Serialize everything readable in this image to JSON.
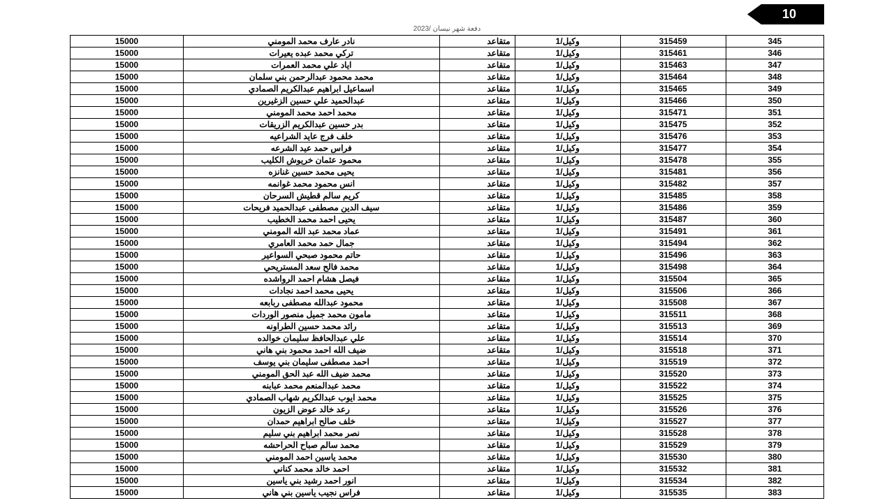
{
  "page_number": "10",
  "header": "دفعة شهر نيسان /2023",
  "table": {
    "columns": [
      "amount",
      "name",
      "status",
      "rank",
      "idnum",
      "rownum"
    ],
    "rows": [
      [
        "15000",
        "نادر عارف محمد المومني",
        "متقاعد",
        "وكيل/1",
        "315459",
        "345"
      ],
      [
        "15000",
        "تركي محمد عبده يعيرات",
        "متقاعد",
        "وكيل/1",
        "315461",
        "346"
      ],
      [
        "15000",
        "اياد علي محمد العمرات",
        "متقاعد",
        "وكيل/1",
        "315463",
        "347"
      ],
      [
        "15000",
        "محمد محمود عبدالرحمن بني سلمان",
        "متقاعد",
        "وكيل/1",
        "315464",
        "348"
      ],
      [
        "15000",
        "اسماعيل ابراهيم عبدالكريم الصمادي",
        "متقاعد",
        "وكيل/1",
        "315465",
        "349"
      ],
      [
        "15000",
        "عبدالحميد علي حسين الزغيرين",
        "متقاعد",
        "وكيل/1",
        "315466",
        "350"
      ],
      [
        "15000",
        "محمد احمد محمد المومني",
        "متقاعد",
        "وكيل/1",
        "315471",
        "351"
      ],
      [
        "15000",
        "بدر حسين عبدالكريم الزريقات",
        "متقاعد",
        "وكيل/1",
        "315475",
        "352"
      ],
      [
        "15000",
        "خلف فرج عايد الشراعيه",
        "متقاعد",
        "وكيل/1",
        "315476",
        "353"
      ],
      [
        "15000",
        "فراس حمد عيد الشرعه",
        "متقاعد",
        "وكيل/1",
        "315477",
        "354"
      ],
      [
        "15000",
        "محمود عثمان خريوش الكليب",
        "متقاعد",
        "وكيل/1",
        "315478",
        "355"
      ],
      [
        "15000",
        "يحيى محمد حسين غنانزه",
        "متقاعد",
        "وكيل/1",
        "315481",
        "356"
      ],
      [
        "15000",
        "انس محمود محمد غوانمه",
        "متقاعد",
        "وكيل/1",
        "315482",
        "357"
      ],
      [
        "15000",
        "كريم سالم قطيش السرحان",
        "متقاعد",
        "وكيل/1",
        "315485",
        "358"
      ],
      [
        "15000",
        "سيف الدين مصطفى عبدالحميد فريحات",
        "متقاعد",
        "وكيل/1",
        "315486",
        "359"
      ],
      [
        "15000",
        "يحيى احمد محمد الخطيب",
        "متقاعد",
        "وكيل/1",
        "315487",
        "360"
      ],
      [
        "15000",
        "عماد محمد عبد الله المومني",
        "متقاعد",
        "وكيل/1",
        "315491",
        "361"
      ],
      [
        "15000",
        "جمال حمد محمد العامري",
        "متقاعد",
        "وكيل/1",
        "315494",
        "362"
      ],
      [
        "15000",
        "حاتم محمود صبحي السواعير",
        "متقاعد",
        "وكيل/1",
        "315496",
        "363"
      ],
      [
        "15000",
        "محمد فالح سعد المستريحي",
        "متقاعد",
        "وكيل/1",
        "315498",
        "364"
      ],
      [
        "15000",
        "فيصل هشام احمد الرواشده",
        "متقاعد",
        "وكيل/1",
        "315504",
        "365"
      ],
      [
        "15000",
        "يحيى محمد احمد نجادات",
        "متقاعد",
        "وكيل/1",
        "315506",
        "366"
      ],
      [
        "15000",
        "محمود عبدالله مصطفى ربابعه",
        "متقاعد",
        "وكيل/1",
        "315508",
        "367"
      ],
      [
        "15000",
        "مامون محمد جميل منصور الوردات",
        "متقاعد",
        "وكيل/1",
        "315511",
        "368"
      ],
      [
        "15000",
        "رائد محمد حسين الطراونه",
        "متقاعد",
        "وكيل/1",
        "315513",
        "369"
      ],
      [
        "15000",
        "علي عبدالحافظ سليمان خوالده",
        "متقاعد",
        "وكيل/1",
        "315514",
        "370"
      ],
      [
        "15000",
        "ضيف الله احمد محمود بني هاني",
        "متقاعد",
        "وكيل/1",
        "315518",
        "371"
      ],
      [
        "15000",
        "احمد مصطفى سليمان بني يوسف",
        "متقاعد",
        "وكيل/1",
        "315519",
        "372"
      ],
      [
        "15000",
        "محمد ضيف الله عبد الحق المومني",
        "متقاعد",
        "وكيل/1",
        "315520",
        "373"
      ],
      [
        "15000",
        "محمد عبدالمنعم محمد عبابنه",
        "متقاعد",
        "وكيل/1",
        "315522",
        "374"
      ],
      [
        "15000",
        "محمد ايوب عبدالكريم شهاب الصمادي",
        "متقاعد",
        "وكيل/1",
        "315525",
        "375"
      ],
      [
        "15000",
        "رعد خالد عوض الزيون",
        "متقاعد",
        "وكيل/1",
        "315526",
        "376"
      ],
      [
        "15000",
        "خلف صالح ابراهيم حمدان",
        "متقاعد",
        "وكيل/1",
        "315527",
        "377"
      ],
      [
        "15000",
        "نصر محمد ابراهيم بني سليم",
        "متقاعد",
        "وكيل/1",
        "315528",
        "378"
      ],
      [
        "15000",
        "محمد سالم صباح الحراحشه",
        "متقاعد",
        "وكيل/1",
        "315529",
        "379"
      ],
      [
        "15000",
        "محمد ياسين احمد المومني",
        "متقاعد",
        "وكيل/1",
        "315530",
        "380"
      ],
      [
        "15000",
        "احمد خالد محمد كناني",
        "متقاعد",
        "وكيل/1",
        "315532",
        "381"
      ],
      [
        "15000",
        "انور احمد رشيد بني ياسين",
        "متقاعد",
        "وكيل/1",
        "315534",
        "382"
      ],
      [
        "15000",
        "فراس نجيب ياسين بني هاني",
        "متقاعد",
        "وكيل/1",
        "315535",
        "383"
      ]
    ]
  },
  "styling": {
    "background": "#ffffff",
    "tab_bg": "#000000",
    "tab_fg": "#ffffff",
    "border_color": "#000000",
    "row_font_size": 12,
    "header_color": "#555555"
  }
}
